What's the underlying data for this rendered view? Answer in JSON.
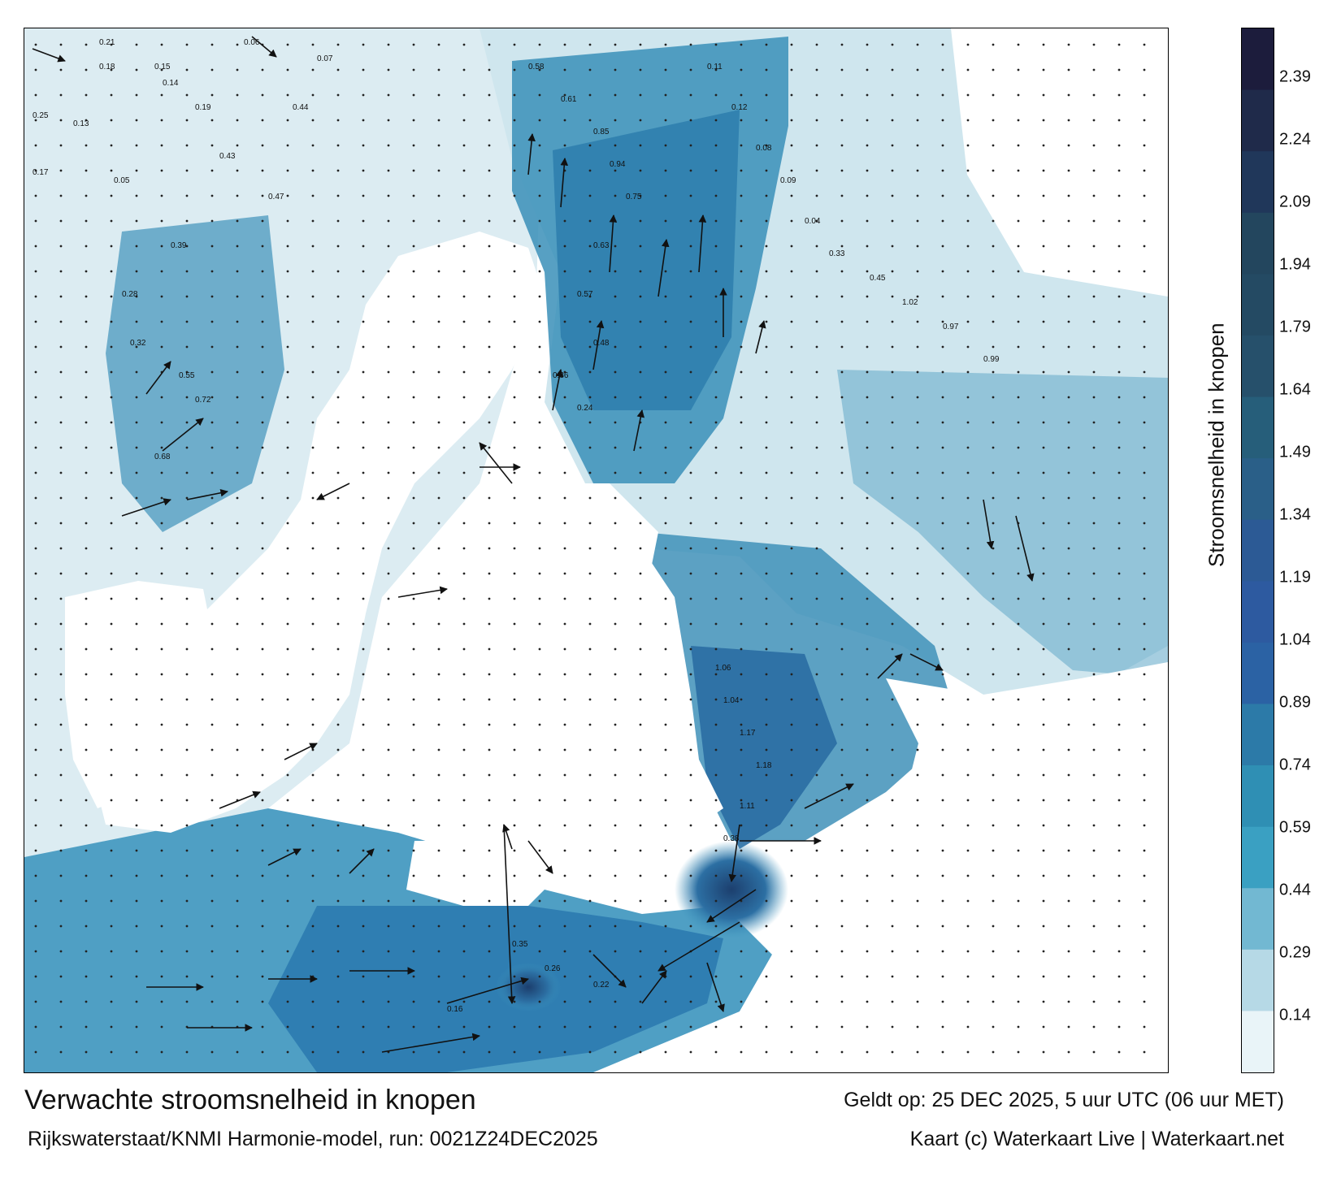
{
  "colors": {
    "land": "#ffffff",
    "sea_light": "#e3f1f5",
    "sea_mid": "#6fb3c9",
    "sea_deep": "#2a83ad",
    "sea_fast": "#1f4f80",
    "arrow": "#111111"
  },
  "map": {
    "title": "Verwachte stroomsnelheid in knopen",
    "model_run": "Rijkswaterstaat/KNMI Harmonie-model, run: 0021Z24DEC2025",
    "valid_time": "Geldt op: 25 DEC 2025, 5 uur UTC (06 uur MET)",
    "credit": "Kaart (c) Waterkaart Live | Waterkaart.net",
    "speed_labels": [
      "0.21",
      "0.18",
      "0.15",
      "0.14",
      "0.13",
      "0.25",
      "0.17",
      "0.05",
      "0.06",
      "0.07",
      "0.19",
      "0.44",
      "0.43",
      "0.47",
      "0.39",
      "0.28",
      "0.32",
      "0.55",
      "0.72",
      "0.68",
      "0.58",
      "0.61",
      "0.85",
      "0.94",
      "0.75",
      "0.63",
      "0.57",
      "0.48",
      "0.36",
      "0.24",
      "0.11",
      "0.12",
      "0.08",
      "0.09",
      "0.04",
      "0.33",
      "0.45",
      "1.02",
      "0.97",
      "0.99",
      "1.06",
      "1.04",
      "1.17",
      "1.18",
      "1.11",
      "0.38",
      "0.35",
      "0.26",
      "0.22",
      "0.16"
    ]
  },
  "colorbar": {
    "title": "Stroomsnelheid in knopen",
    "ticks": [
      "2.39",
      "2.24",
      "2.09",
      "1.94",
      "1.79",
      "1.64",
      "1.49",
      "1.34",
      "1.19",
      "1.04",
      "0.89",
      "0.74",
      "0.59",
      "0.44",
      "0.29",
      "0.14"
    ],
    "colors": [
      "#1c1c3c",
      "#1f2a4a",
      "#20375a",
      "#23465e",
      "#244a63",
      "#26506b",
      "#265e7a",
      "#2a5f88",
      "#2c5a95",
      "#2d5aa0",
      "#2b62a4",
      "#2c7aa8",
      "#2f8fb4",
      "#3aa0c2",
      "#72b8d2",
      "#b6d9e6",
      "#e9f4f8"
    ]
  }
}
